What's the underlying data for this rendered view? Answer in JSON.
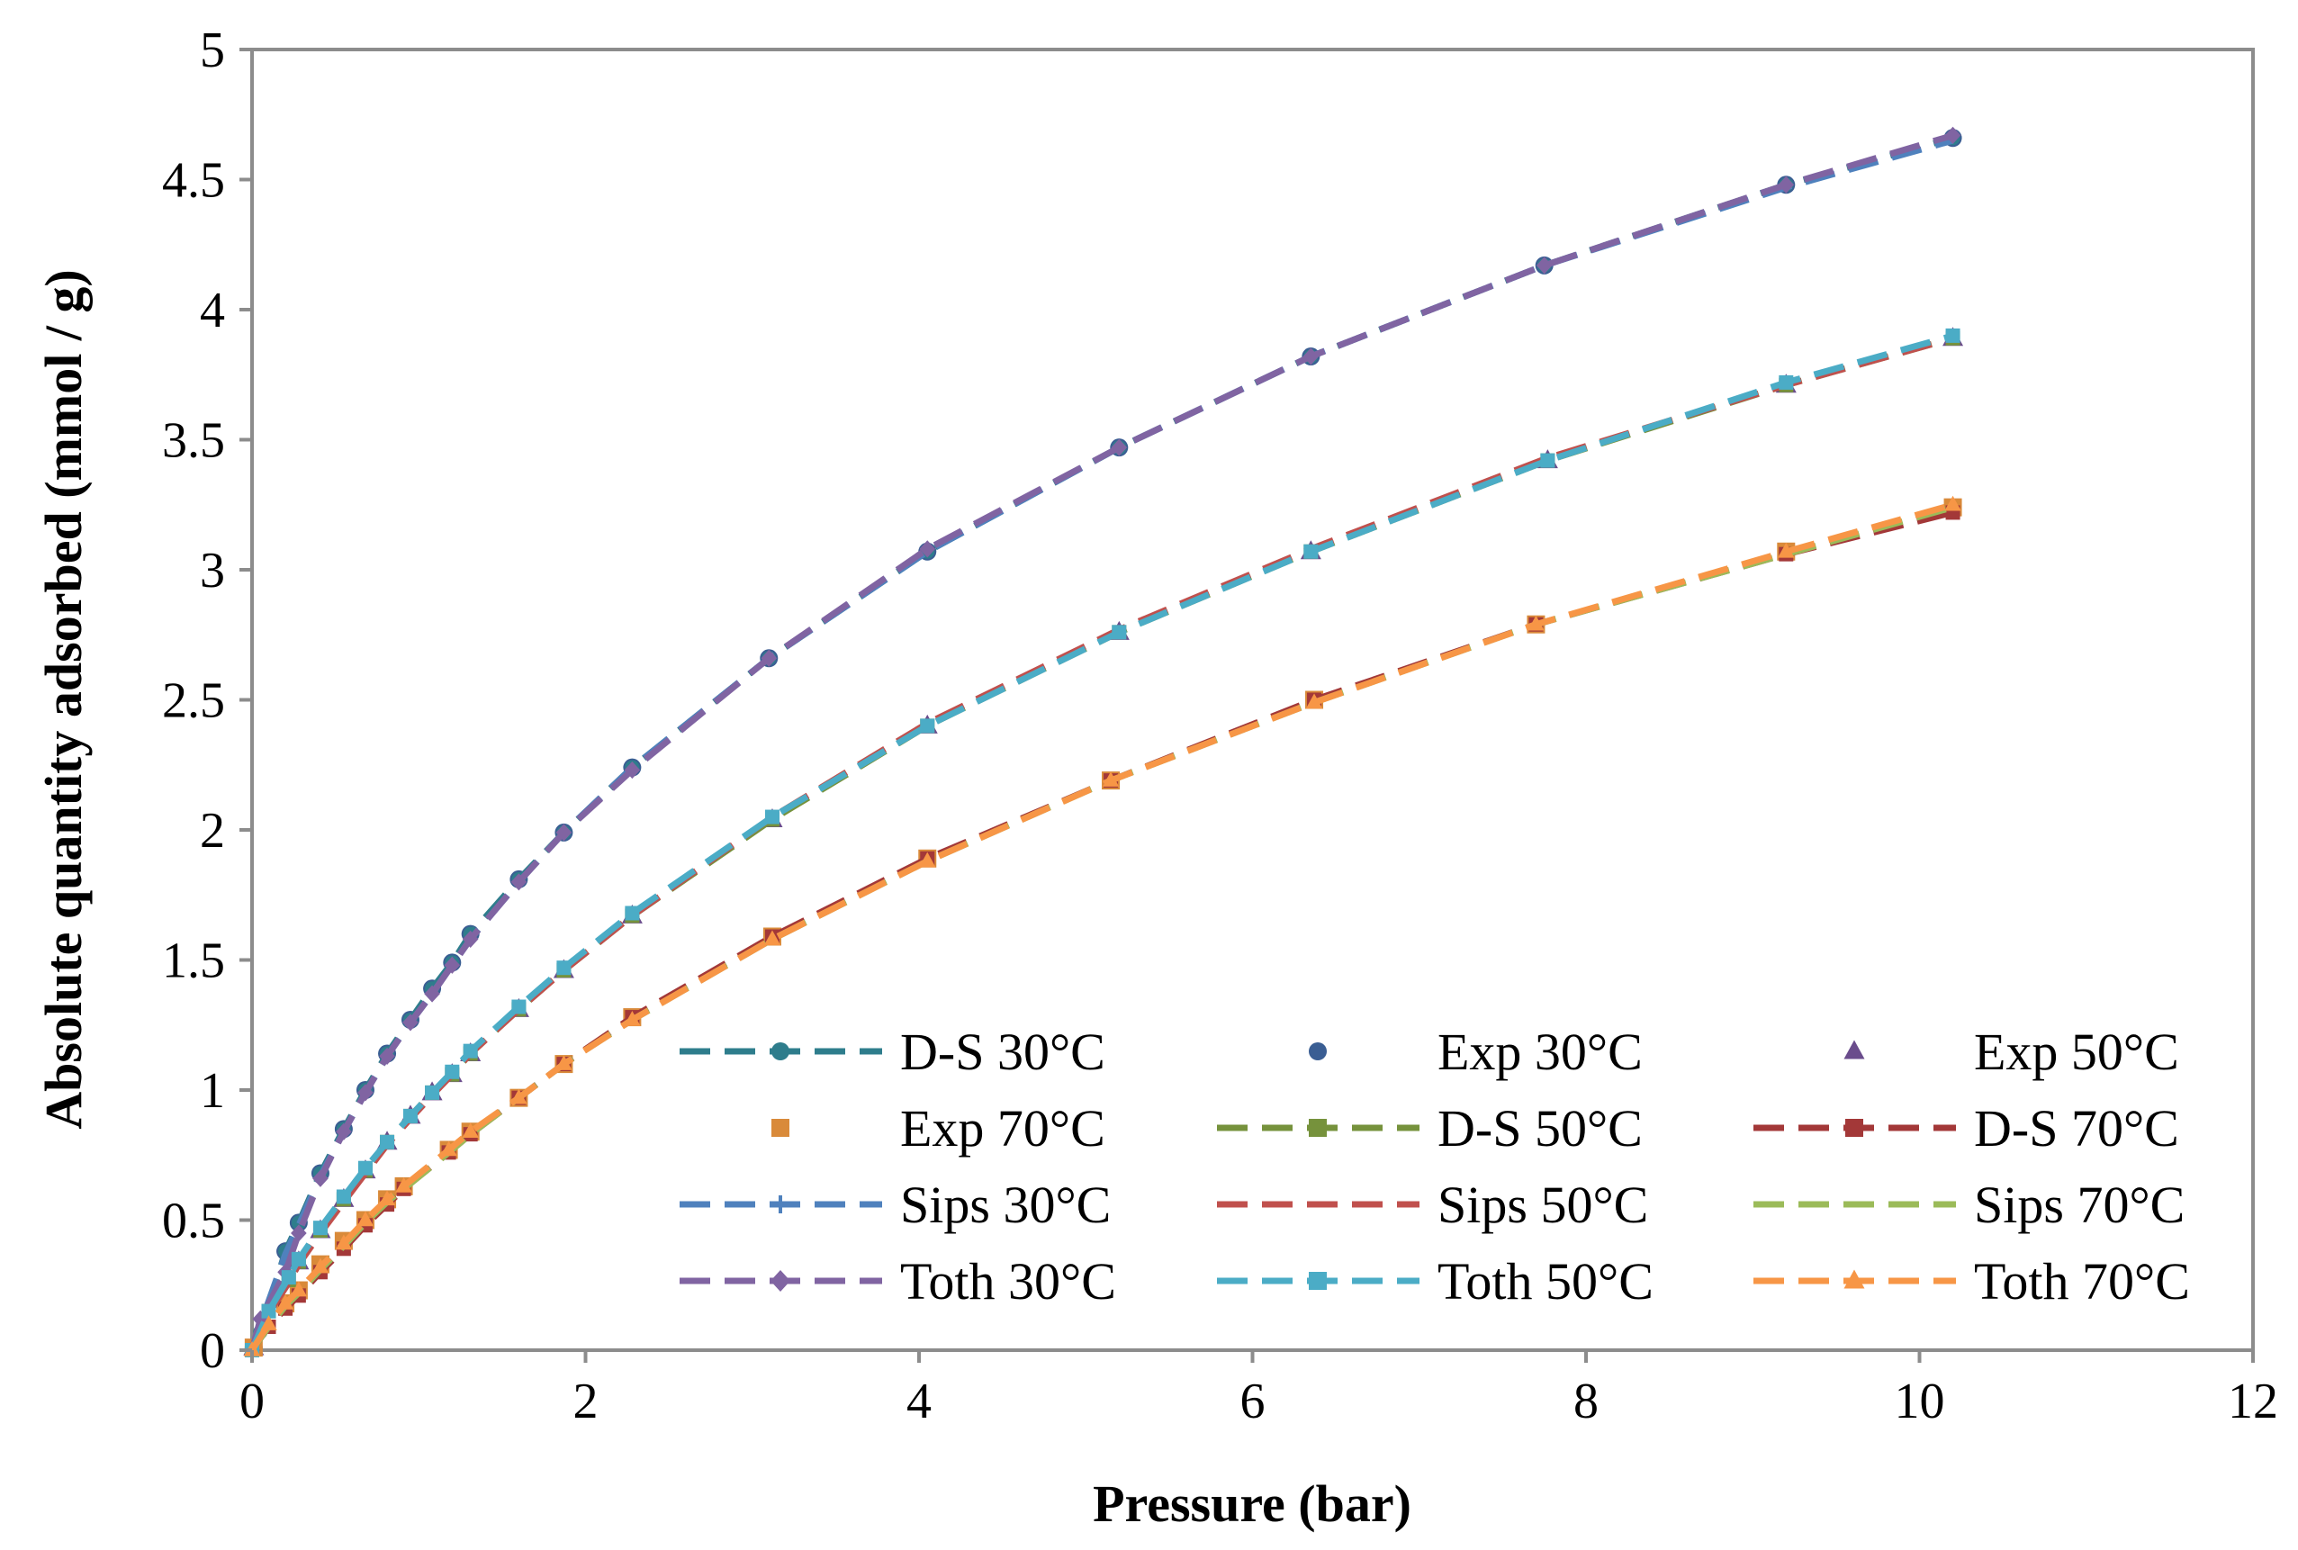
{
  "chart_data": {
    "type": "line",
    "title": "",
    "xlabel": "Pressure (bar)",
    "ylabel": "Absolute quantity adsorbed  (mmol / g)",
    "xlim": [
      0,
      12
    ],
    "ylim": [
      0,
      5
    ],
    "xticks": [
      0,
      2,
      4,
      6,
      8,
      10,
      12
    ],
    "yticks": [
      0,
      0.5,
      1,
      1.5,
      2,
      2.5,
      3,
      3.5,
      4,
      4.5,
      5
    ],
    "xtick_labels": [
      "0",
      "2",
      "4",
      "6",
      "8",
      "10",
      "12"
    ],
    "ytick_labels": [
      "0",
      "0.5",
      "1",
      "1.5",
      "2",
      "2.5",
      "3",
      "3.5",
      "4",
      "4.5",
      "5"
    ],
    "grid": false,
    "legend_position": "bottom-right",
    "series": [
      {
        "name": "D-S 30°C",
        "style": "dashed",
        "marker": "circle",
        "color": "#2e7d8c",
        "x": [
          0,
          0.05,
          0.2,
          0.28,
          0.41,
          0.55,
          0.68,
          0.81,
          0.95,
          1.08,
          1.2,
          1.31,
          1.6,
          1.87,
          2.28,
          3.1,
          4.05,
          5.2,
          6.35,
          7.75,
          9.2,
          10.2
        ],
        "y": [
          0,
          0.07,
          0.38,
          0.49,
          0.68,
          0.85,
          1.0,
          1.14,
          1.27,
          1.39,
          1.49,
          1.6,
          1.81,
          1.99,
          2.24,
          2.66,
          3.07,
          3.47,
          3.82,
          4.17,
          4.48,
          4.66
        ]
      },
      {
        "name": "Exp 30°C",
        "style": "none",
        "marker": "circle",
        "color": "#3a5e93",
        "x": [
          0.01,
          0.2,
          0.28,
          0.41,
          0.55,
          0.68,
          0.81,
          0.95,
          1.08,
          1.2,
          1.31,
          1.6,
          1.87,
          2.28,
          3.1,
          4.05,
          5.2,
          6.35,
          7.75,
          9.2,
          10.2
        ],
        "y": [
          0.01,
          0.38,
          0.49,
          0.68,
          0.85,
          1.0,
          1.14,
          1.27,
          1.39,
          1.49,
          1.6,
          1.81,
          1.99,
          2.24,
          2.66,
          3.07,
          3.47,
          3.82,
          4.17,
          4.48,
          4.66
        ]
      },
      {
        "name": "Exp 50°C",
        "style": "none",
        "marker": "triangle",
        "color": "#6a4c8c",
        "x": [
          0.01,
          0.22,
          0.28,
          0.41,
          0.55,
          0.68,
          0.81,
          0.95,
          1.08,
          1.2,
          1.31,
          1.6,
          1.87,
          2.28,
          3.12,
          4.05,
          5.2,
          6.35,
          7.77,
          9.2,
          10.2
        ],
        "y": [
          0.01,
          0.27,
          0.34,
          0.46,
          0.58,
          0.69,
          0.8,
          0.9,
          0.99,
          1.06,
          1.14,
          1.31,
          1.46,
          1.67,
          2.04,
          2.4,
          2.76,
          3.07,
          3.42,
          3.71,
          3.89
        ]
      },
      {
        "name": "Exp 70°C",
        "style": "none",
        "marker": "square",
        "color": "#d98a3a",
        "x": [
          0.01,
          0.2,
          0.28,
          0.41,
          0.55,
          0.68,
          0.81,
          0.91,
          1.18,
          1.31,
          1.6,
          1.87,
          2.28,
          3.12,
          4.05,
          5.15,
          6.37,
          7.7,
          9.2,
          10.2
        ],
        "y": [
          0.01,
          0.18,
          0.23,
          0.33,
          0.42,
          0.5,
          0.58,
          0.63,
          0.77,
          0.84,
          0.97,
          1.1,
          1.28,
          1.59,
          1.89,
          2.19,
          2.5,
          2.79,
          3.07,
          3.24
        ]
      },
      {
        "name": "D-S 50°C",
        "style": "dashed",
        "marker": "square",
        "color": "#76923c",
        "x": [
          0,
          0.1,
          0.22,
          0.28,
          0.41,
          0.55,
          0.68,
          0.81,
          0.95,
          1.08,
          1.2,
          1.31,
          1.6,
          1.87,
          2.28,
          3.12,
          4.05,
          5.2,
          6.35,
          7.77,
          9.2,
          10.2
        ],
        "y": [
          0,
          0.15,
          0.27,
          0.34,
          0.46,
          0.58,
          0.69,
          0.8,
          0.9,
          0.99,
          1.06,
          1.14,
          1.31,
          1.46,
          1.67,
          2.04,
          2.4,
          2.76,
          3.07,
          3.42,
          3.71,
          3.89
        ]
      },
      {
        "name": "D-S 70°C",
        "style": "dashed",
        "marker": "square",
        "color": "#a33838",
        "x": [
          0,
          0.1,
          0.2,
          0.28,
          0.41,
          0.55,
          0.68,
          0.81,
          0.91,
          1.18,
          1.31,
          1.6,
          1.87,
          2.28,
          3.12,
          4.05,
          5.15,
          6.37,
          7.7,
          9.2,
          10.2
        ],
        "y": [
          0,
          0.09,
          0.16,
          0.21,
          0.3,
          0.39,
          0.48,
          0.56,
          0.62,
          0.76,
          0.83,
          0.97,
          1.1,
          1.28,
          1.59,
          1.89,
          2.19,
          2.5,
          2.79,
          3.06,
          3.22
        ]
      },
      {
        "name": "Sips 30°C",
        "style": "dashed",
        "marker": "plus",
        "color": "#4f81bd",
        "x": [
          0,
          0.05,
          0.2,
          0.28,
          0.41,
          0.55,
          0.68,
          0.81,
          0.95,
          1.08,
          1.2,
          1.31,
          1.6,
          1.87,
          2.28,
          3.1,
          4.05,
          5.2,
          6.35,
          7.75,
          9.2,
          10.2
        ],
        "y": [
          0,
          0.1,
          0.37,
          0.48,
          0.67,
          0.84,
          0.99,
          1.13,
          1.26,
          1.37,
          1.48,
          1.58,
          1.8,
          1.99,
          2.24,
          2.66,
          3.07,
          3.47,
          3.82,
          4.17,
          4.47,
          4.65
        ]
      },
      {
        "name": "Sips 50°C",
        "style": "dashed",
        "marker": "dash",
        "color": "#c0504d",
        "x": [
          0,
          0.1,
          0.22,
          0.28,
          0.41,
          0.55,
          0.68,
          0.81,
          0.95,
          1.08,
          1.2,
          1.31,
          1.6,
          1.87,
          2.28,
          3.12,
          4.05,
          5.2,
          6.35,
          7.77,
          9.2,
          10.2
        ],
        "y": [
          0,
          0.14,
          0.26,
          0.33,
          0.45,
          0.57,
          0.68,
          0.79,
          0.89,
          0.98,
          1.06,
          1.14,
          1.31,
          1.46,
          1.67,
          2.05,
          2.41,
          2.77,
          3.08,
          3.43,
          3.71,
          3.89
        ]
      },
      {
        "name": "Sips 70°C",
        "style": "dashed",
        "marker": "dash",
        "color": "#9bbb59",
        "x": [
          0,
          0.1,
          0.2,
          0.28,
          0.41,
          0.55,
          0.68,
          0.81,
          0.91,
          1.18,
          1.31,
          1.6,
          1.87,
          2.28,
          3.12,
          4.05,
          5.15,
          6.37,
          7.7,
          9.2,
          10.2
        ],
        "y": [
          0,
          0.09,
          0.17,
          0.22,
          0.31,
          0.4,
          0.49,
          0.57,
          0.62,
          0.76,
          0.83,
          0.97,
          1.1,
          1.27,
          1.58,
          1.88,
          2.19,
          2.49,
          2.79,
          3.06,
          3.24
        ]
      },
      {
        "name": "Toth 30°C",
        "style": "dashed",
        "marker": "diamond",
        "color": "#8064a2",
        "x": [
          0,
          0.05,
          0.2,
          0.28,
          0.41,
          0.55,
          0.68,
          0.81,
          0.95,
          1.08,
          1.2,
          1.31,
          1.6,
          1.87,
          2.28,
          3.1,
          4.05,
          5.2,
          6.35,
          7.75,
          9.2,
          10.2
        ],
        "y": [
          0,
          0.12,
          0.3,
          0.45,
          0.66,
          0.84,
          0.99,
          1.13,
          1.26,
          1.37,
          1.48,
          1.58,
          1.8,
          1.99,
          2.23,
          2.66,
          3.08,
          3.47,
          3.82,
          4.17,
          4.48,
          4.67
        ]
      },
      {
        "name": "Toth 50°C",
        "style": "dashed",
        "marker": "square",
        "color": "#4bacc6",
        "x": [
          0,
          0.1,
          0.22,
          0.28,
          0.41,
          0.55,
          0.68,
          0.81,
          0.95,
          1.08,
          1.2,
          1.31,
          1.6,
          1.87,
          2.28,
          3.12,
          4.05,
          5.2,
          6.35,
          7.77,
          9.2,
          10.2
        ],
        "y": [
          0,
          0.15,
          0.28,
          0.35,
          0.47,
          0.59,
          0.7,
          0.8,
          0.9,
          0.99,
          1.07,
          1.15,
          1.32,
          1.47,
          1.68,
          2.05,
          2.4,
          2.76,
          3.07,
          3.42,
          3.72,
          3.9
        ]
      },
      {
        "name": "Toth 70°C",
        "style": "dashed",
        "marker": "triangle",
        "color": "#f79646",
        "x": [
          0,
          0.1,
          0.2,
          0.28,
          0.41,
          0.55,
          0.68,
          0.81,
          0.91,
          1.18,
          1.31,
          1.6,
          1.87,
          2.28,
          3.12,
          4.05,
          5.15,
          6.37,
          7.7,
          9.2,
          10.2
        ],
        "y": [
          0,
          0.1,
          0.18,
          0.23,
          0.32,
          0.41,
          0.5,
          0.58,
          0.63,
          0.77,
          0.84,
          0.97,
          1.1,
          1.27,
          1.58,
          1.88,
          2.19,
          2.49,
          2.79,
          3.07,
          3.25
        ]
      }
    ]
  }
}
